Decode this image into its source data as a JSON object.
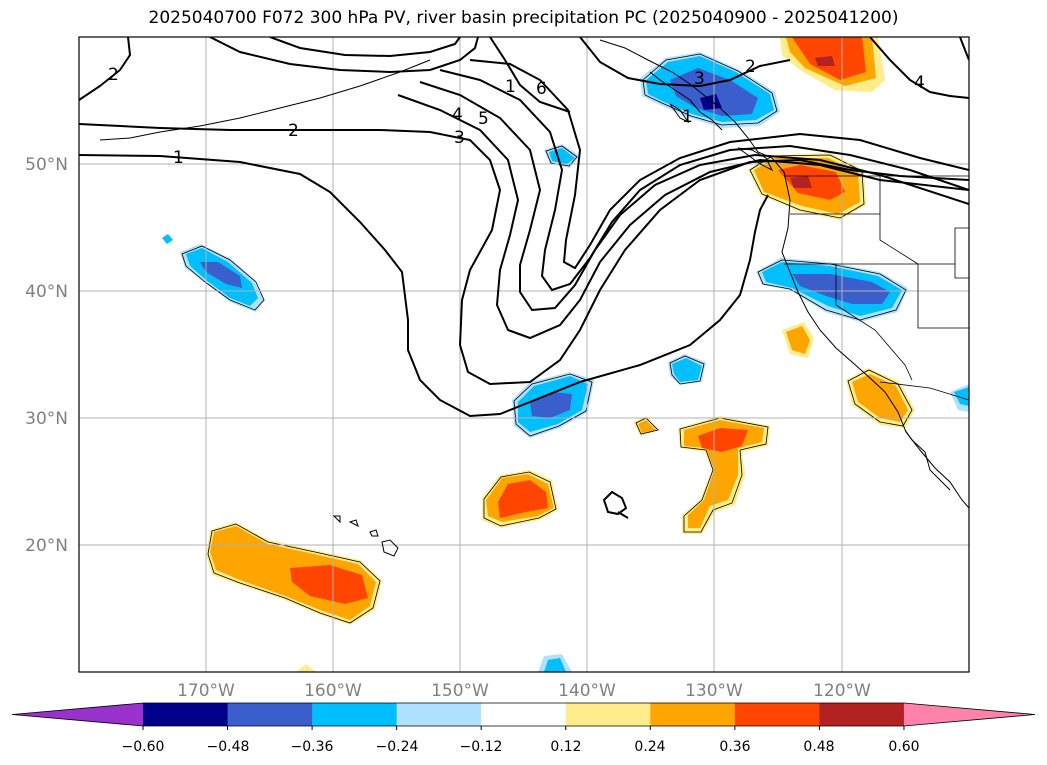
{
  "title": "2025040700 F072 300 hPa PV, river basin precipitation PC (2025040900 - 2025041200)",
  "lat_labels": [
    "50°N",
    "40°N",
    "30°N",
    "20°N"
  ],
  "lon_labels": [
    "170°W",
    "160°W",
    "150°W",
    "140°W",
    "130°W",
    "120°W"
  ],
  "pv_contour_labels": [
    "1",
    "2",
    "2",
    "3",
    "4",
    "5",
    "6",
    "1",
    "2",
    "4",
    "1",
    "3"
  ],
  "colorbar": {
    "tick_labels": [
      "−0.60",
      "−0.48",
      "−0.36",
      "−0.24",
      "−0.12",
      "0.12",
      "0.24",
      "0.36",
      "0.48",
      "0.60"
    ],
    "colors": [
      "#9932cc",
      "#00008b",
      "#3a5fcd",
      "#00bfff",
      "#b0e2ff",
      "#ffffff",
      "#ffec8b",
      "#ffa500",
      "#ff4500",
      "#b22222",
      "#ff82ab"
    ]
  },
  "chart_data": {
    "type": "map",
    "projection": "cylindrical",
    "extent": {
      "lon": [
        -180,
        -110
      ],
      "lat": [
        10,
        60
      ]
    },
    "grid": true,
    "contour_field": "300 hPa PV",
    "shaded_field": "river basin precipitation PC",
    "shading_levels": [
      -0.6,
      -0.48,
      -0.36,
      -0.24,
      -0.12,
      0.12,
      0.24,
      0.36,
      0.48,
      0.6
    ],
    "colorbar_extend": "both"
  }
}
